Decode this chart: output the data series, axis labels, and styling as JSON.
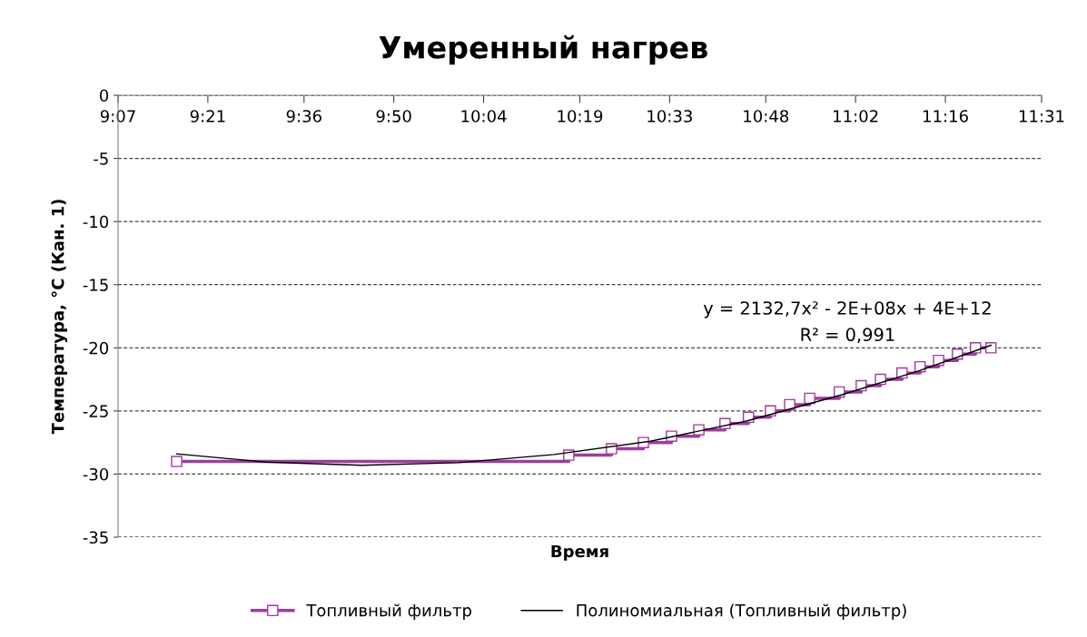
{
  "chart_data": {
    "type": "line",
    "title": "Умеренный нагрев",
    "xlabel": "Время",
    "ylabel": "Температура, °C (Кан. 1)",
    "xlim": [
      9.1167,
      11.5167
    ],
    "xticks": [
      {
        "value": 9.1167,
        "label": "9:07"
      },
      {
        "value": 9.35,
        "label": "9:21"
      },
      {
        "value": 9.6,
        "label": "9:36"
      },
      {
        "value": 9.8333,
        "label": "9:50"
      },
      {
        "value": 10.0667,
        "label": "10:04"
      },
      {
        "value": 10.3167,
        "label": "10:19"
      },
      {
        "value": 10.55,
        "label": "10:33"
      },
      {
        "value": 10.8,
        "label": "10:48"
      },
      {
        "value": 11.0333,
        "label": "11:02"
      },
      {
        "value": 11.2667,
        "label": "11:16"
      },
      {
        "value": 11.5167,
        "label": "11:31"
      }
    ],
    "ylim": [
      -35,
      0
    ],
    "yticks": [
      0,
      -5,
      -10,
      -15,
      -20,
      -25,
      -30,
      -35
    ],
    "grid": "y",
    "legend": "bottom",
    "annotations": [
      "y = 2132,7x² - 2E+08x + 4E+12",
      "R² = 0,991"
    ],
    "series": [
      {
        "name": "Топливный фильтр",
        "type": "step",
        "color": "#9e3d9e",
        "marker": "square",
        "line_style": "solid",
        "x": [
          9.269,
          10.288,
          10.399,
          10.482,
          10.555,
          10.626,
          10.694,
          10.755,
          10.812,
          10.862,
          10.914,
          10.991,
          11.048,
          11.098,
          11.154,
          11.201,
          11.249,
          11.298,
          11.345,
          11.385
        ],
        "values": [
          -29,
          -28.5,
          -28,
          -27.5,
          -27,
          -26.5,
          -26,
          -25.5,
          -25,
          -24.5,
          -24,
          -23.5,
          -23,
          -22.5,
          -22,
          -21.5,
          -21,
          -20.5,
          -20,
          -20
        ]
      },
      {
        "name": "Полиномиальная (Топливный фильтр)",
        "color": "#000000",
        "marker": "none",
        "line_style": "solid",
        "x": [
          9.269,
          9.5,
          9.75,
          10.0,
          10.25,
          10.5,
          10.75,
          11.0,
          11.2,
          11.385
        ],
        "values": [
          -28.4,
          -29.05,
          -29.3,
          -29.1,
          -28.45,
          -27.4,
          -25.8,
          -23.7,
          -21.8,
          -19.8
        ]
      }
    ]
  }
}
